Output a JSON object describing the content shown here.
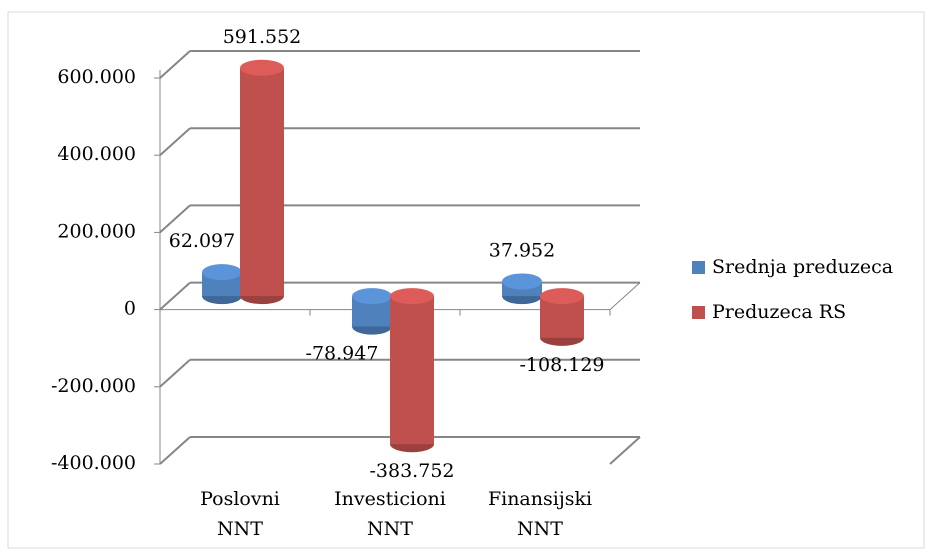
{
  "chart_data": {
    "type": "bar3d",
    "categories": [
      "Poslovni NNT",
      "Investicioni NNT",
      "Finansijski NNT"
    ],
    "series": [
      {
        "name": "Srednja preduzeca",
        "color": "#4f81bd",
        "values": [
          62097,
          -78947,
          37952
        ],
        "value_labels": [
          "62.097",
          "-78.947",
          "37.952"
        ]
      },
      {
        "name": "Preduzeca RS",
        "color": "#c0504d",
        "values": [
          591552,
          -383752,
          -108129
        ],
        "value_labels": [
          "591.552",
          "-383.752",
          "-108.129"
        ]
      }
    ],
    "ylim": [
      -400000,
      600000
    ],
    "yticks": [
      {
        "value": -400000,
        "label": "-400.000"
      },
      {
        "value": -200000,
        "label": "-200.000"
      },
      0,
      {
        "value": 200000,
        "label": "200.000"
      },
      {
        "value": 400000,
        "label": "400.000"
      },
      {
        "value": 600000,
        "label": "600.000"
      }
    ],
    "grid": true,
    "legend": "right"
  }
}
